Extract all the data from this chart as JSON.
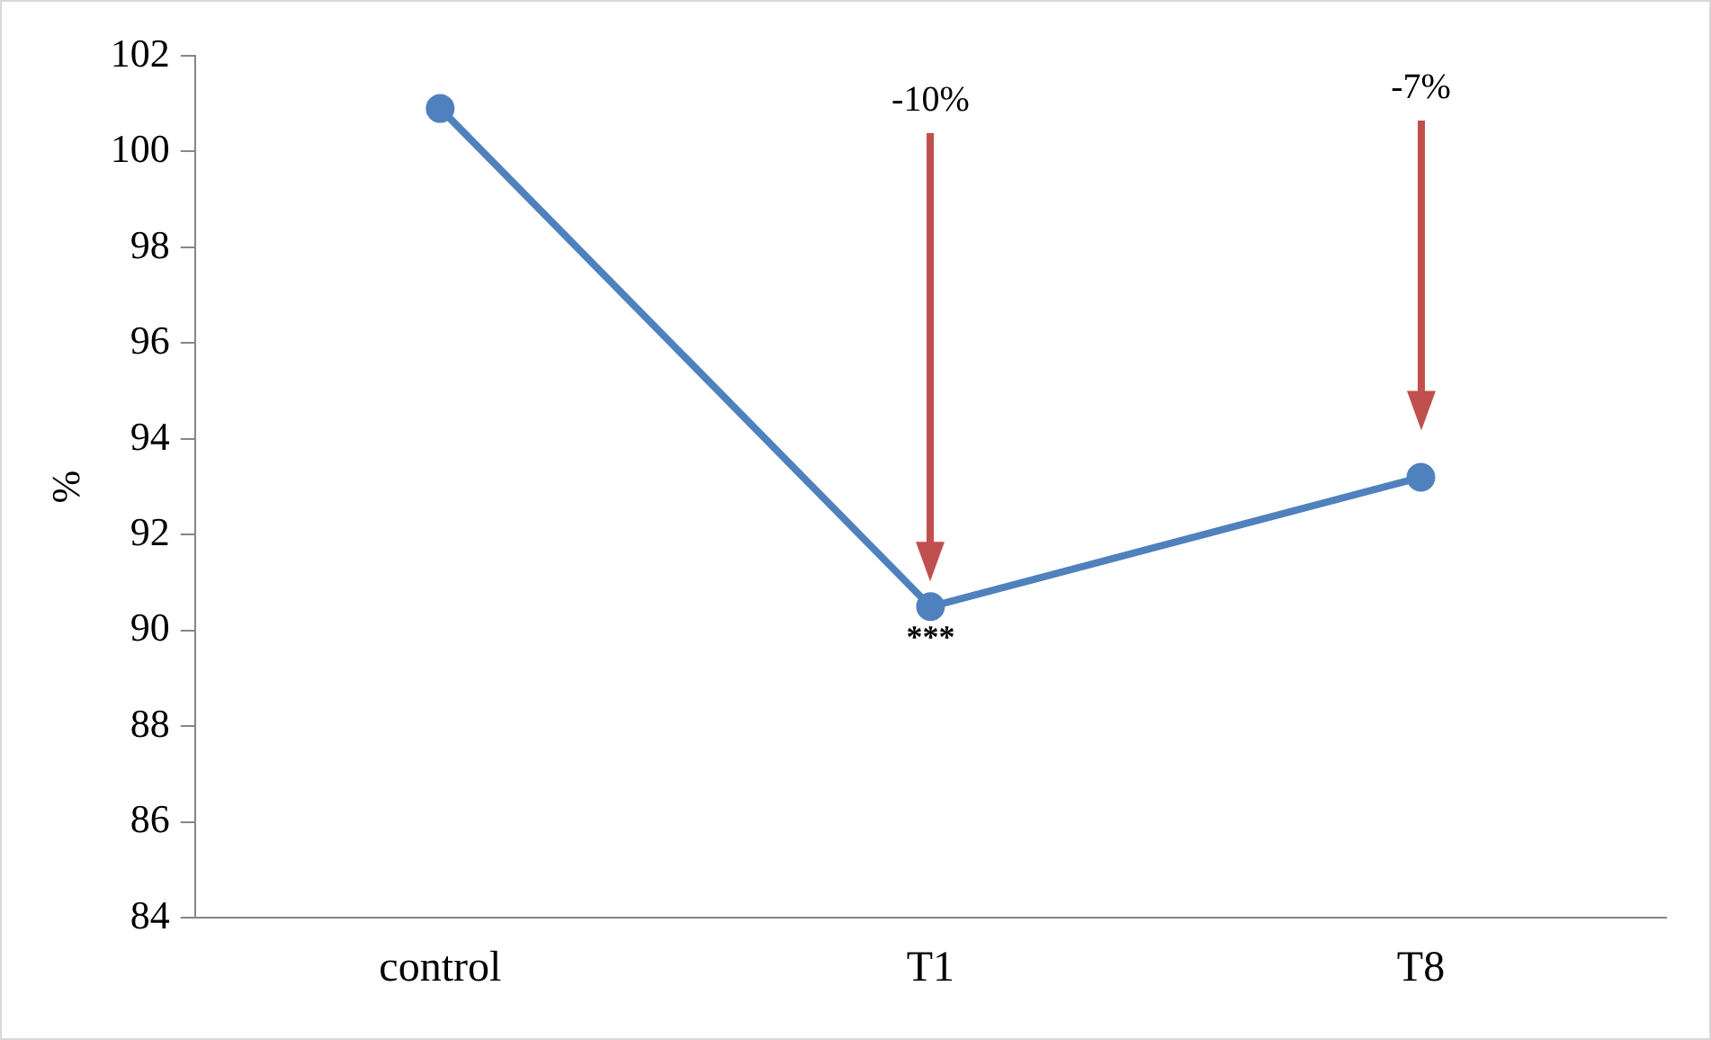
{
  "chart_data": {
    "type": "line",
    "ylabel": "%",
    "categories": [
      "control",
      "T1",
      "T8"
    ],
    "series": [
      {
        "color": "#4f81bd",
        "values": [
          100.9,
          90.5,
          93.2
        ]
      }
    ],
    "ylim": [
      84,
      102
    ],
    "yticks": [
      84,
      86,
      88,
      90,
      92,
      94,
      96,
      98,
      100,
      102
    ],
    "grid": false,
    "legend": false,
    "marker": "circle",
    "line_style": "solid",
    "annotations": [
      "-10%",
      "-7%",
      {
        "text": "***",
        "x": "T1",
        "y": 90.5
      }
    ]
  }
}
